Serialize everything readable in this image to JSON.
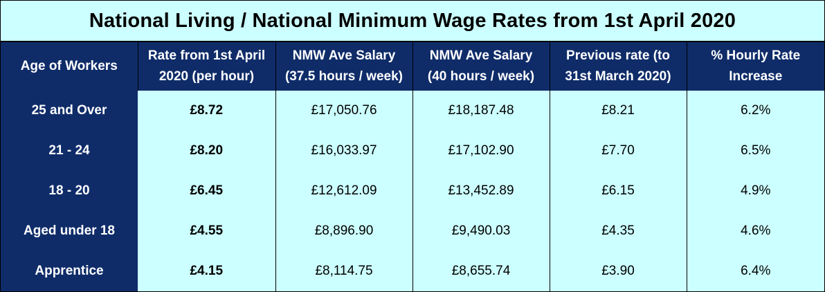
{
  "title": "National Living / National Minimum Wage Rates from 1st April 2020",
  "headers": [
    {
      "line1": "Age of Workers",
      "line2": ""
    },
    {
      "line1": "Rate from 1st April",
      "line2": "2020 (per hour)"
    },
    {
      "line1": "NMW Ave Salary",
      "line2": "(37.5 hours / week)"
    },
    {
      "line1": "NMW Ave Salary",
      "line2": "(40 hours / week)"
    },
    {
      "line1": "Previous rate (to",
      "line2": "31st March 2020)"
    },
    {
      "line1": "% Hourly Rate",
      "line2": "Increase"
    }
  ],
  "rows": [
    {
      "age": "25 and Over",
      "rate": "£8.72",
      "salary_37_5": "£17,050.76",
      "salary_40": "£18,187.48",
      "previous": "£8.21",
      "increase": "6.2%"
    },
    {
      "age": "21 - 24",
      "rate": "£8.20",
      "salary_37_5": "£16,033.97",
      "salary_40": "£17,102.90",
      "previous": "£7.70",
      "increase": "6.5%"
    },
    {
      "age": "18 - 20",
      "rate": "£6.45",
      "salary_37_5": "£12,612.09",
      "salary_40": "£13,452.89",
      "previous": "£6.15",
      "increase": "4.9%"
    },
    {
      "age": "Aged under 18",
      "rate": "£4.55",
      "salary_37_5": "£8,896.90",
      "salary_40": "£9,490.03",
      "previous": "£4.35",
      "increase": "4.6%"
    },
    {
      "age": "Apprentice",
      "rate": "£4.15",
      "salary_37_5": "£8,114.75",
      "salary_40": "£8,655.74",
      "previous": "£3.90",
      "increase": "6.4%"
    }
  ],
  "colors": {
    "header_bg": "#0f2c69",
    "cell_bg": "#ccffff",
    "header_text": "#ffffff"
  }
}
